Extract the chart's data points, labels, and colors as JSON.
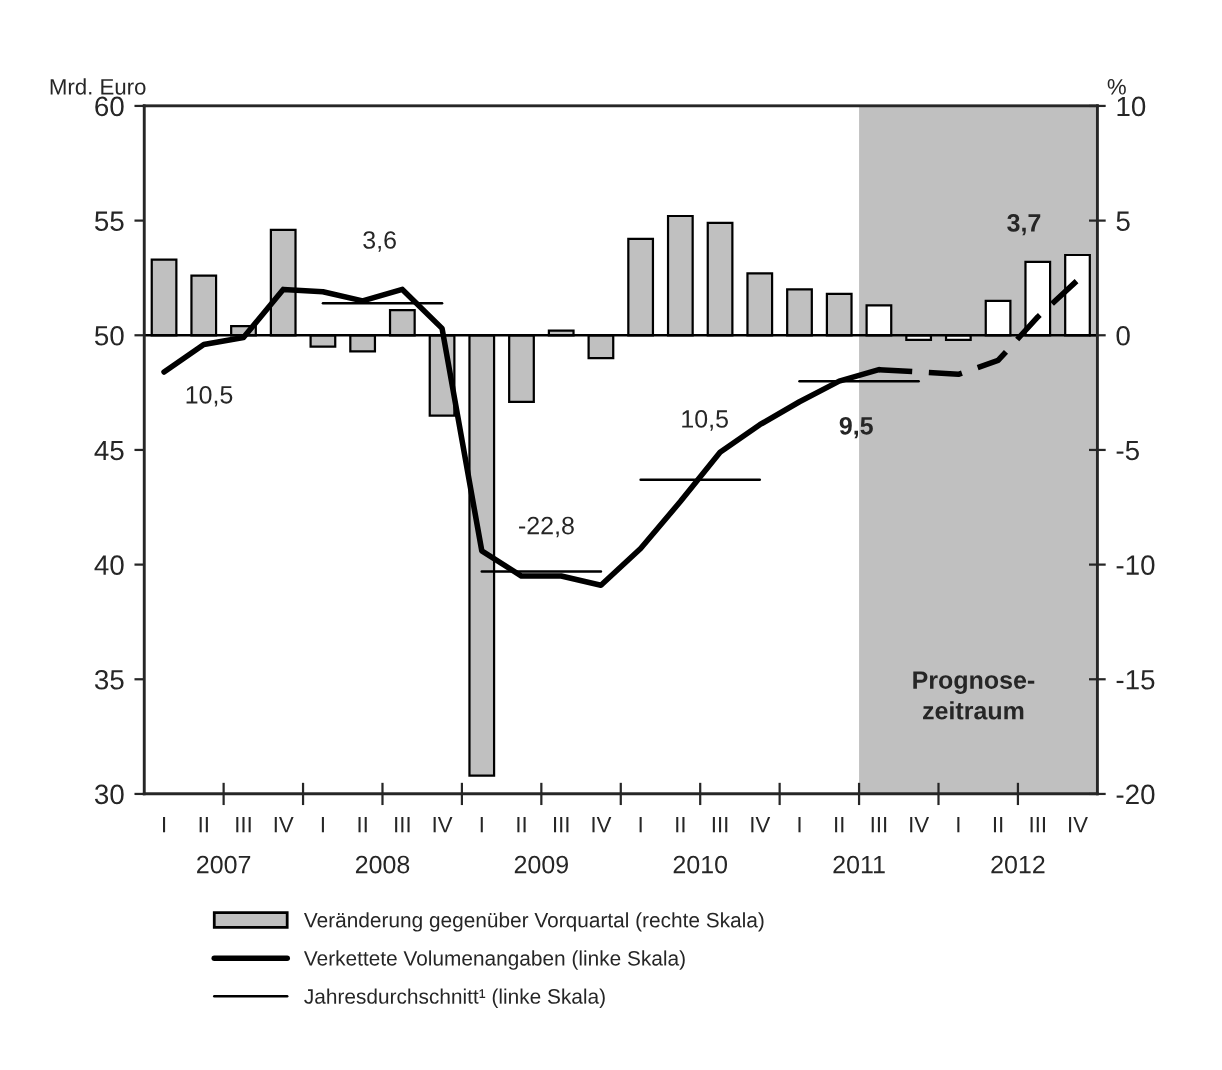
{
  "chart_data": {
    "type": "bar",
    "ylabel": "Mrd. Euro",
    "y2label": "%",
    "categories": [
      "I",
      "II",
      "III",
      "IV",
      "I",
      "II",
      "III",
      "IV",
      "I",
      "II",
      "III",
      "IV",
      "I",
      "II",
      "III",
      "IV",
      "I",
      "II",
      "III",
      "IV",
      "I",
      "II",
      "III",
      "IV"
    ],
    "x2lim": [
      2007,
      2013
    ],
    "x2ticks": [
      {
        "value": 2007.5,
        "label": "2007"
      },
      {
        "value": 2008.5,
        "label": "2008"
      },
      {
        "value": 2009.5,
        "label": "2009"
      },
      {
        "value": 2010.5,
        "label": "2010"
      },
      {
        "value": 2011.5,
        "label": "2011"
      },
      {
        "value": 2012.5,
        "label": "2012"
      },
      {
        "value": 2008,
        "label": null
      },
      {
        "value": 2009,
        "label": null
      },
      {
        "value": 2010,
        "label": null
      },
      {
        "value": 2011,
        "label": null
      },
      {
        "value": 2012,
        "label": null
      }
    ],
    "ylim": [
      30,
      60
    ],
    "yticks": [
      30,
      35,
      40,
      45,
      50,
      55,
      60
    ],
    "y2lim": [
      -20,
      10
    ],
    "y2ticks": [
      -20,
      -15,
      -10,
      -5,
      0,
      5,
      10
    ],
    "series": [
      {
        "axis": "y2",
        "name": "Veränderung gegenüber Vorquartal (rechte Skala)",
        "colors": [
          "#c0c0c0",
          "#c0c0c0",
          "#c0c0c0",
          "#c0c0c0",
          "#c0c0c0",
          "#c0c0c0",
          "#c0c0c0",
          "#c0c0c0",
          "#c0c0c0",
          "#c0c0c0",
          "#c0c0c0",
          "#c0c0c0",
          "#c0c0c0",
          "#c0c0c0",
          "#c0c0c0",
          "#c0c0c0",
          "#c0c0c0",
          "#c0c0c0",
          "#ffffff",
          "#ffffff",
          "#ffffff",
          "#ffffff",
          "#ffffff",
          "#ffffff"
        ],
        "values": [
          3.3,
          2.6,
          0.4,
          4.6,
          -0.5,
          -0.7,
          1.1,
          -3.5,
          -19.2,
          -2.9,
          0.2,
          -1.0,
          4.2,
          5.2,
          4.9,
          2.7,
          2.0,
          1.8,
          1.3,
          -0.2,
          -0.2,
          1.5,
          3.2,
          3.5
        ]
      },
      {
        "type": "line",
        "name": "Verkettete Volumenangaben (linke Skala)",
        "color": "#000000",
        "line_style": "solid",
        "values": [
          48.4,
          49.6,
          49.9,
          52.0,
          51.9,
          51.5,
          52.0,
          50.3,
          40.6,
          39.5,
          39.5,
          39.1,
          40.7,
          42.75,
          44.9,
          46.1,
          47.1,
          48.0,
          48.5,
          null,
          null,
          null,
          null,
          null
        ]
      },
      {
        "type": "line",
        "color": "#000000",
        "line_style": "dashed",
        "values": [
          null,
          null,
          null,
          null,
          null,
          null,
          null,
          null,
          null,
          null,
          null,
          null,
          null,
          null,
          null,
          null,
          null,
          null,
          48.5,
          48.4,
          48.3,
          48.9,
          50.8,
          52.4
        ]
      },
      {
        "type": "step",
        "name": "Jahresdurchschnitt¹ (linke Skala)",
        "color": "#000000",
        "values": [
          null,
          null,
          null,
          null,
          51.4,
          51.4,
          51.4,
          51.4,
          null,
          null,
          null,
          null,
          null,
          null,
          null,
          null,
          null,
          null,
          null,
          null,
          null,
          null,
          null,
          null
        ]
      },
      {
        "type": "step",
        "color": "#000000",
        "values": [
          null,
          null,
          null,
          null,
          null,
          null,
          null,
          null,
          39.7,
          39.7,
          39.7,
          39.7,
          null,
          null,
          null,
          null,
          null,
          null,
          null,
          null,
          null,
          null,
          null,
          null
        ]
      },
      {
        "type": "step",
        "color": "#000000",
        "values": [
          null,
          null,
          null,
          null,
          null,
          null,
          null,
          null,
          null,
          null,
          null,
          null,
          43.7,
          43.7,
          43.7,
          43.7,
          null,
          null,
          null,
          null,
          null,
          null,
          null,
          null
        ]
      },
      {
        "type": "step",
        "color": "#000000",
        "values": [
          null,
          null,
          null,
          null,
          null,
          null,
          null,
          null,
          null,
          null,
          null,
          null,
          null,
          null,
          null,
          null,
          48.0,
          48.0,
          48.0,
          48.0,
          null,
          null,
          null,
          null
        ]
      }
    ],
    "ref_lines": [
      {
        "axis": "y2",
        "value": 0,
        "color": "#000000"
      }
    ],
    "annotations": [
      "10,5",
      "3,6",
      "-22,8",
      "10,5",
      "9,5",
      "3,7",
      "Prognose-\nzeitraum"
    ],
    "legend": "bottom left",
    "grid": false
  }
}
